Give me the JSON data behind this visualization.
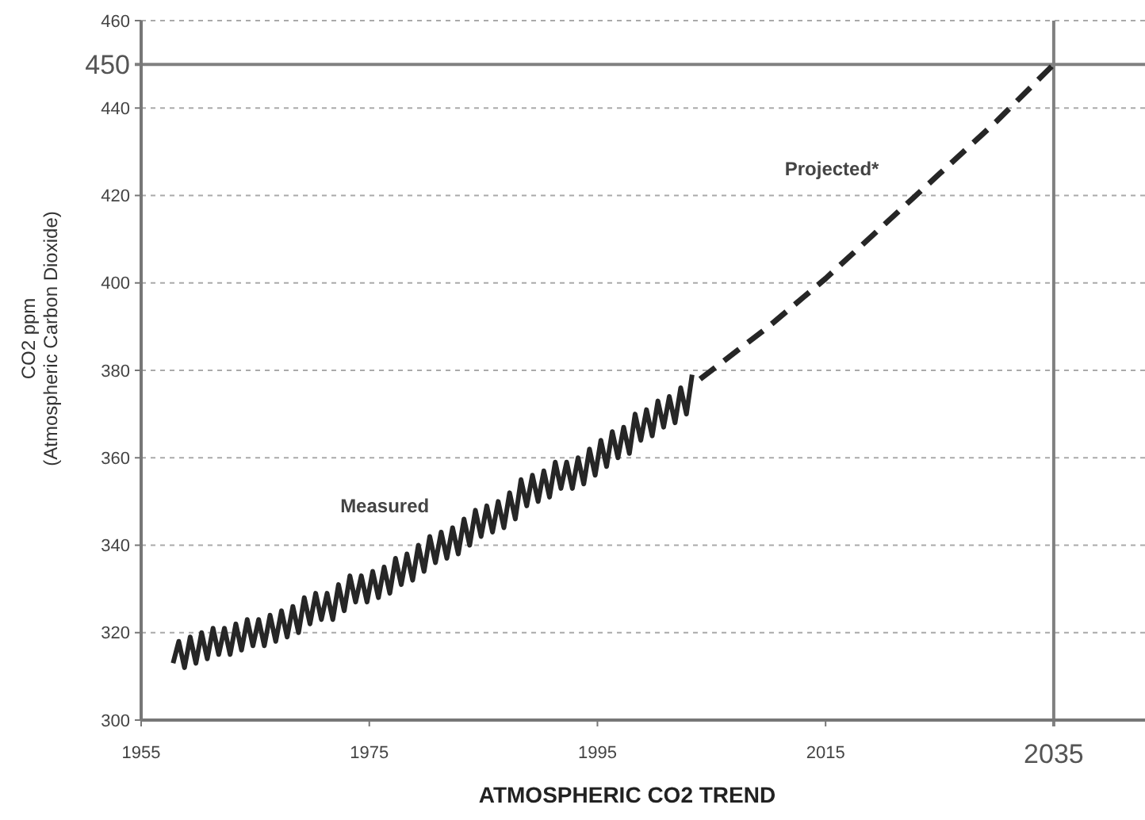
{
  "chart_data": {
    "type": "line",
    "title": "ATMOSPHERIC CO2 TREND",
    "ylabel": "CO2 ppm\n(Atmospheric Carbon Dioxide)",
    "xlim": [
      1955,
      2043
    ],
    "xticks": [
      1955,
      1975,
      1995,
      2015
    ],
    "ylim": [
      300,
      460
    ],
    "yticks": [
      300,
      320,
      340,
      360,
      380,
      400,
      420,
      440,
      460
    ],
    "grid": "y",
    "marker": "none",
    "ref_lines": [
      {
        "axis": "y",
        "value": 450,
        "label": "450",
        "color": "#808080",
        "line_style": "solid"
      },
      {
        "axis": "x",
        "value": 2035,
        "label": "2035",
        "color": "#808080",
        "line_style": "solid"
      }
    ],
    "series": [
      {
        "name": "Measured",
        "color": "#262626",
        "line_style": "solid",
        "x": [
          1957.8,
          1958.3,
          1958.8,
          1959.3,
          1959.8,
          1960.3,
          1960.8,
          1961.3,
          1961.8,
          1962.3,
          1962.8,
          1963.3,
          1963.8,
          1964.3,
          1964.8,
          1965.3,
          1965.8,
          1966.3,
          1966.8,
          1967.3,
          1967.8,
          1968.3,
          1968.8,
          1969.3,
          1969.8,
          1970.3,
          1970.8,
          1971.3,
          1971.8,
          1972.3,
          1972.8,
          1973.3,
          1973.8,
          1974.3,
          1974.8,
          1975.3,
          1975.8,
          1976.3,
          1976.8,
          1977.3,
          1977.8,
          1978.3,
          1978.8,
          1979.3,
          1979.8,
          1980.3,
          1980.8,
          1981.3,
          1981.8,
          1982.3,
          1982.8,
          1983.3,
          1983.8,
          1984.3,
          1984.8,
          1985.3,
          1985.8,
          1986.3,
          1986.8,
          1987.3,
          1987.8,
          1988.3,
          1988.8,
          1989.3,
          1989.8,
          1990.3,
          1990.8,
          1991.3,
          1991.8,
          1992.3,
          1992.8,
          1993.3,
          1993.8,
          1994.3,
          1994.8,
          1995.3,
          1995.8,
          1996.3,
          1996.8,
          1997.3,
          1997.8,
          1998.3,
          1998.8,
          1999.3,
          1999.8,
          2000.3,
          2000.8,
          2001.3,
          2001.8,
          2002.3,
          2002.8,
          2003.3
        ],
        "values": [
          313,
          318,
          312,
          319,
          313,
          320,
          314,
          321,
          315,
          321,
          315,
          322,
          316,
          323,
          317,
          323,
          317,
          324,
          318,
          325,
          319,
          326,
          320,
          328,
          322,
          329,
          323,
          329,
          323,
          331,
          325,
          333,
          327,
          333,
          327,
          334,
          328,
          335,
          329,
          337,
          331,
          338,
          332,
          340,
          334,
          342,
          336,
          343,
          337,
          344,
          338,
          346,
          340,
          348,
          342,
          349,
          343,
          350,
          344,
          352,
          346,
          355,
          349,
          356,
          350,
          357,
          351,
          359,
          353,
          359,
          353,
          360,
          354,
          362,
          356,
          364,
          358,
          366,
          360,
          367,
          361,
          370,
          364,
          371,
          365,
          373,
          367,
          374,
          368,
          376,
          370,
          379
        ]
      },
      {
        "name": "Projected*",
        "color": "#262626",
        "line_style": "dashed",
        "x": [
          2004,
          2010,
          2015,
          2020,
          2025,
          2030,
          2035
        ],
        "values": [
          378,
          390,
          401,
          413,
          425,
          437,
          450
        ]
      }
    ]
  }
}
